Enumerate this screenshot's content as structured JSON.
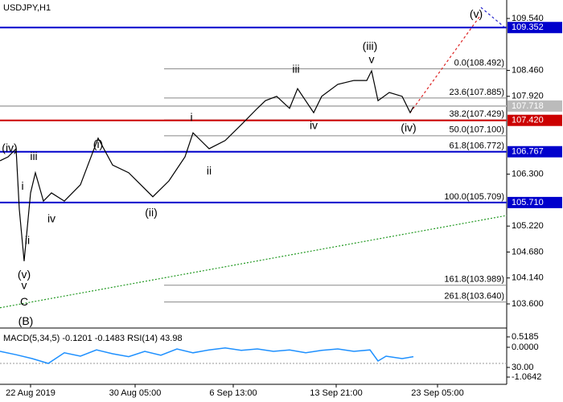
{
  "chart_data": {
    "type": "line",
    "title": "USDJPY,H1",
    "xlim": [
      0,
      315
    ],
    "ylim": [
      103.098,
      109.925
    ],
    "xticks": [
      {
        "value": 19,
        "label": "22 Aug 2019"
      },
      {
        "value": 84,
        "label": "30 Aug 05:00"
      },
      {
        "value": 145,
        "label": "6 Sep 13:00"
      },
      {
        "value": 209,
        "label": "13 Sep 21:00"
      },
      {
        "value": 272,
        "label": "23 Sep 05:00"
      }
    ],
    "yticks": [
      {
        "value": 109.54,
        "label": "109.540"
      },
      {
        "value": 108.46,
        "label": "108.460"
      },
      {
        "value": 107.92,
        "label": "107.920"
      },
      {
        "value": 106.3,
        "label": "106.300"
      },
      {
        "value": 105.22,
        "label": "105.220"
      },
      {
        "value": 104.68,
        "label": "104.680"
      },
      {
        "value": 104.14,
        "label": "104.140"
      },
      {
        "value": 103.6,
        "label": "103.600"
      }
    ],
    "series": [
      {
        "color": "#000000",
        "x": [
          0,
          5,
          10,
          12,
          15,
          19,
          22,
          27,
          32,
          40,
          50,
          61,
          70,
          80,
          95,
          105,
          115,
          120,
          130,
          140,
          150,
          160,
          165,
          172,
          180,
          185,
          195,
          200,
          210,
          220,
          228,
          231,
          235,
          242,
          250,
          255,
          257
        ],
        "values": [
          106.58,
          106.66,
          106.83,
          105.57,
          104.49,
          105.91,
          106.33,
          105.74,
          105.91,
          105.74,
          106.08,
          107.05,
          106.49,
          106.33,
          105.83,
          106.16,
          106.66,
          107.16,
          106.83,
          107.0,
          107.33,
          107.67,
          107.83,
          107.92,
          107.67,
          108.08,
          107.58,
          107.92,
          108.17,
          108.25,
          108.25,
          108.45,
          107.83,
          108.0,
          107.92,
          107.58,
          107.7
        ]
      }
    ],
    "moving_average": {
      "color": "#229922",
      "x": [
        0,
        315
      ],
      "values": [
        103.52,
        105.44
      ]
    },
    "projections": [
      {
        "color": "#dd2222",
        "x": [
          255,
          299
        ],
        "values": [
          107.58,
          109.62
        ]
      },
      {
        "color": "#2222cc",
        "x": [
          299,
          315
        ],
        "values": [
          109.77,
          109.32
        ]
      }
    ],
    "levels": [
      {
        "value": 109.352,
        "color": "#0000cc"
      },
      {
        "value": 107.718,
        "color": "#bbbbbb"
      },
      {
        "value": 107.42,
        "label": "107.420",
        "color": "#cc0000"
      },
      {
        "value": 106.767,
        "color": "#0000cc"
      },
      {
        "value": 105.71,
        "label": "105.710",
        "color": "#0000cc"
      }
    ],
    "fibonacci": {
      "x_start": 102,
      "levels": [
        {
          "value": 108.492,
          "label": "0.0(108.492)"
        },
        {
          "value": 107.885,
          "label": "23.6(107.885)"
        },
        {
          "value": 107.429,
          "label": "38.2(107.429)"
        },
        {
          "value": 107.1,
          "label": "50.0(107.100)"
        },
        {
          "value": 106.772,
          "label": "61.8(106.772)"
        },
        {
          "value": 105.709,
          "label": "100.0(105.709)"
        },
        {
          "value": 103.989,
          "label": "161.8(103.989)"
        },
        {
          "value": 103.64,
          "label": "261.8(103.640)"
        }
      ]
    },
    "annotations": [
      {
        "text": "(iv)",
        "x": 6,
        "y": 106.83,
        "color": "#cc0000"
      },
      {
        "text": "iii",
        "x": 21,
        "y": 106.66,
        "color": "#777777"
      },
      {
        "text": "i",
        "x": 14,
        "y": 106.04,
        "color": "#777777"
      },
      {
        "text": "ii",
        "x": 17,
        "y": 104.91,
        "color": "#777777"
      },
      {
        "text": "(v)",
        "x": 15,
        "y": 104.2,
        "color": "#cc0000"
      },
      {
        "text": "v",
        "x": 15,
        "y": 103.97,
        "color": "#0000cc"
      },
      {
        "text": "C",
        "x": 15,
        "y": 103.63,
        "color": "#cc0000"
      },
      {
        "text": "(B)",
        "x": 16,
        "y": 103.23,
        "color": "#118811"
      },
      {
        "text": "iv",
        "x": 32,
        "y": 105.36,
        "color": "#777777"
      },
      {
        "text": "(i)",
        "x": 61,
        "y": 106.91,
        "color": "#cc0000"
      },
      {
        "text": "(ii)",
        "x": 94,
        "y": 105.49,
        "color": "#cc0000"
      },
      {
        "text": "i",
        "x": 119,
        "y": 107.47,
        "color": "#777777"
      },
      {
        "text": "ii",
        "x": 130,
        "y": 106.36,
        "color": "#777777"
      },
      {
        "text": "iii",
        "x": 184,
        "y": 108.47,
        "color": "#777777"
      },
      {
        "text": "iv",
        "x": 195,
        "y": 107.3,
        "color": "#777777"
      },
      {
        "text": "(iii)",
        "x": 230,
        "y": 108.95,
        "color": "#cc0000"
      },
      {
        "text": "v",
        "x": 231,
        "y": 108.67,
        "color": "#777777"
      },
      {
        "text": "(iv)",
        "x": 254,
        "y": 107.25,
        "color": "#cc0000"
      },
      {
        "text": "(v)",
        "x": 296,
        "y": 109.62,
        "color": "#cc0000"
      }
    ],
    "indicator": {
      "label": "MACD(5,34,5) -0.1201 -0.1483 RSI(14) 43.98",
      "color": "#1e90ff",
      "yticks": [
        0.5185,
        {
          "value": 0,
          "label": "0.0000"
        },
        {
          "value": 30,
          "label": "30.00"
        },
        -1.0642
      ],
      "ylim": [
        0,
        100
      ],
      "x": [
        0,
        10,
        20,
        30,
        40,
        50,
        60,
        70,
        80,
        90,
        100,
        110,
        120,
        130,
        140,
        150,
        160,
        170,
        180,
        190,
        200,
        210,
        220,
        230,
        235,
        240,
        250,
        257
      ],
      "rsi": [
        55,
        48,
        40,
        30,
        52,
        45,
        58,
        50,
        44,
        55,
        47,
        60,
        52,
        58,
        62,
        57,
        60,
        55,
        58,
        52,
        57,
        60,
        55,
        58,
        35,
        45,
        40,
        44
      ]
    }
  }
}
